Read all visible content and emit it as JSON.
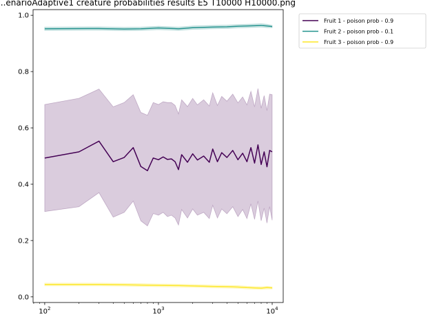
{
  "chart_data": {
    "type": "line",
    "title": "...enarioAdaptive1 creature probabilities results E5 T10000 H10000.png",
    "x_scale": "log",
    "xlim": [
      79,
      12500
    ],
    "ylim": [
      -0.02,
      1.02
    ],
    "x_ticks": [
      {
        "value": 100,
        "base": "10",
        "exp": "2"
      },
      {
        "value": 1000,
        "base": "10",
        "exp": "3"
      },
      {
        "value": 10000,
        "base": "10",
        "exp": "4"
      }
    ],
    "y_ticks": [
      "0.0",
      "0.2",
      "0.4",
      "0.6",
      "0.8",
      "1.0"
    ],
    "grid": false,
    "legend_position": "outside-top-right",
    "series": [
      {
        "name": "Fruit 1 - poison prob  - 0.9",
        "color": "#440154",
        "band_color": "#440154",
        "x": [
          100,
          200,
          300,
          400,
          500,
          600,
          700,
          800,
          900,
          1000,
          1100,
          1200,
          1300,
          1400,
          1500,
          1600,
          1800,
          2000,
          2200,
          2500,
          2800,
          3000,
          3300,
          3600,
          4000,
          4500,
          5000,
          5500,
          6000,
          6500,
          7000,
          7500,
          8000,
          8500,
          9000,
          9500,
          10000
        ],
        "mean": [
          0.493,
          0.515,
          0.553,
          0.48,
          0.495,
          0.53,
          0.463,
          0.448,
          0.493,
          0.487,
          0.497,
          0.488,
          0.49,
          0.48,
          0.452,
          0.505,
          0.478,
          0.508,
          0.486,
          0.5,
          0.478,
          0.525,
          0.48,
          0.512,
          0.495,
          0.52,
          0.487,
          0.51,
          0.48,
          0.53,
          0.475,
          0.54,
          0.47,
          0.515,
          0.462,
          0.52,
          0.515
        ],
        "lower": [
          0.303,
          0.32,
          0.37,
          0.283,
          0.3,
          0.34,
          0.27,
          0.252,
          0.296,
          0.29,
          0.3,
          0.285,
          0.29,
          0.28,
          0.255,
          0.31,
          0.28,
          0.312,
          0.29,
          0.3,
          0.278,
          0.325,
          0.28,
          0.312,
          0.295,
          0.32,
          0.285,
          0.31,
          0.278,
          0.33,
          0.275,
          0.34,
          0.27,
          0.315,
          0.262,
          0.32,
          0.272
        ],
        "upper": [
          0.683,
          0.705,
          0.738,
          0.675,
          0.69,
          0.718,
          0.655,
          0.645,
          0.69,
          0.683,
          0.693,
          0.69,
          0.69,
          0.68,
          0.65,
          0.7,
          0.676,
          0.705,
          0.682,
          0.7,
          0.678,
          0.725,
          0.68,
          0.712,
          0.695,
          0.72,
          0.689,
          0.71,
          0.682,
          0.73,
          0.675,
          0.74,
          0.67,
          0.715,
          0.662,
          0.72,
          0.718
        ]
      },
      {
        "name": "Fruit 2 - poison prob  - 0.1",
        "color": "#21918c",
        "band_color": "#21918c",
        "x": [
          100,
          300,
          500,
          700,
          1000,
          1500,
          2000,
          3000,
          4000,
          5000,
          6000,
          7000,
          8000,
          9000,
          10000
        ],
        "mean": [
          0.952,
          0.953,
          0.951,
          0.952,
          0.955,
          0.952,
          0.956,
          0.958,
          0.959,
          0.961,
          0.962,
          0.963,
          0.964,
          0.962,
          0.96
        ],
        "lower": [
          0.946,
          0.947,
          0.945,
          0.946,
          0.949,
          0.946,
          0.95,
          0.952,
          0.953,
          0.955,
          0.956,
          0.957,
          0.958,
          0.956,
          0.956
        ],
        "upper": [
          0.958,
          0.959,
          0.957,
          0.958,
          0.961,
          0.958,
          0.962,
          0.964,
          0.965,
          0.967,
          0.968,
          0.969,
          0.97,
          0.968,
          0.964
        ]
      },
      {
        "name": "Fruit 3 - poison prob  - 0.9",
        "color": "#fde725",
        "band_color": "#fde725",
        "x": [
          100,
          300,
          500,
          700,
          1000,
          1500,
          2000,
          3000,
          4000,
          5000,
          6000,
          7000,
          8000,
          9000,
          10000
        ],
        "mean": [
          0.044,
          0.044,
          0.043,
          0.042,
          0.041,
          0.04,
          0.039,
          0.037,
          0.036,
          0.035,
          0.033,
          0.032,
          0.031,
          0.033,
          0.032
        ],
        "lower": [
          0.039,
          0.039,
          0.038,
          0.037,
          0.036,
          0.035,
          0.034,
          0.032,
          0.031,
          0.03,
          0.028,
          0.027,
          0.026,
          0.028,
          0.028
        ],
        "upper": [
          0.049,
          0.049,
          0.048,
          0.047,
          0.046,
          0.045,
          0.044,
          0.042,
          0.041,
          0.04,
          0.038,
          0.037,
          0.036,
          0.038,
          0.036
        ]
      }
    ]
  }
}
